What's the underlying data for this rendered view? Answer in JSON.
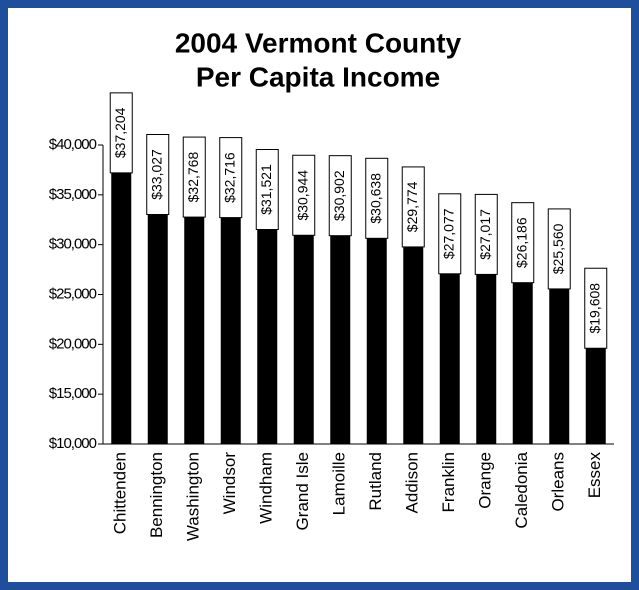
{
  "chart_data": {
    "type": "bar",
    "title": [
      "2004 Vermont County",
      "Per Capita Income"
    ],
    "categories": [
      "Chittenden",
      "Bennington",
      "Washington",
      "Windsor",
      "Windham",
      "Grand Isle",
      "Lamoille",
      "Rutland",
      "Addison",
      "Franklin",
      "Orange",
      "Caledonia",
      "Orleans",
      "Essex"
    ],
    "values": [
      37204,
      33027,
      32768,
      32716,
      31521,
      30944,
      30902,
      30638,
      29774,
      27077,
      27017,
      26186,
      25560,
      19608
    ],
    "value_labels": [
      "$37,204",
      "$33,027",
      "$32,768",
      "$32,716",
      "$31,521",
      "$30,944",
      "$30,902",
      "$30,638",
      "$29,774",
      "$27,077",
      "$27,017",
      "$26,186",
      "$25,560",
      "$19,608"
    ],
    "color": "#000000",
    "ylim": [
      10000,
      40000
    ],
    "yticks": [
      {
        "value": 10000,
        "label": "$10,000"
      },
      {
        "value": 15000,
        "label": "$15,000"
      },
      {
        "value": 20000,
        "label": "$20,000"
      },
      {
        "value": 25000,
        "label": "$25,000"
      },
      {
        "value": 30000,
        "label": "$30,000"
      },
      {
        "value": 35000,
        "label": "$35,000"
      },
      {
        "value": 40000,
        "label": "$40,000"
      }
    ]
  }
}
